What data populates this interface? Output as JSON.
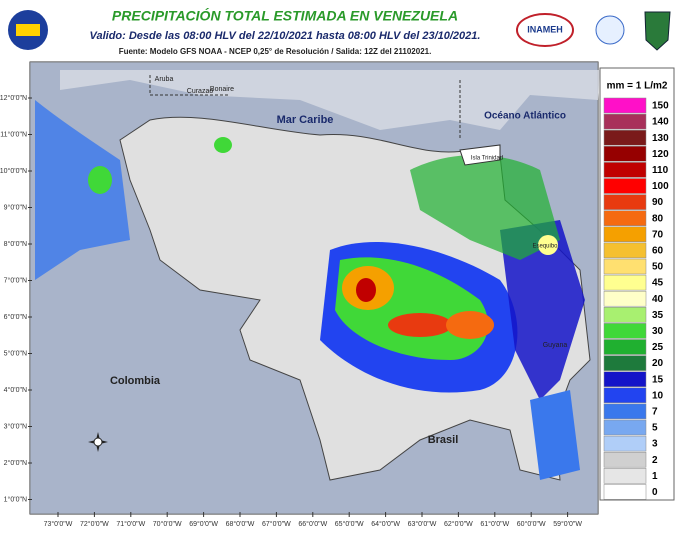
{
  "header": {
    "title": "PRECIPITACIÓN TOTAL ESTIMADA EN VENEZUELA",
    "subtitle": "Valido: Desde las 08:00 HLV del 22/10/2021 hasta 08:00 HLV del 23/10/2021.",
    "source": "Fuente: Modelo GFS NOAA - NCEP 0,25° de Resolución / Salida: 12Z del 21102021.",
    "logo": "INAMEH"
  },
  "legend": {
    "title": "mm = 1 L/m2",
    "items": [
      {
        "value": 150,
        "color": "#ff10c8"
      },
      {
        "value": 140,
        "color": "#a8305a"
      },
      {
        "value": 130,
        "color": "#7a1a1a"
      },
      {
        "value": 120,
        "color": "#960000"
      },
      {
        "value": 110,
        "color": "#c00000"
      },
      {
        "value": 100,
        "color": "#ff0000"
      },
      {
        "value": 90,
        "color": "#e83a10"
      },
      {
        "value": 80,
        "color": "#f56a10"
      },
      {
        "value": 70,
        "color": "#f5a000"
      },
      {
        "value": 60,
        "color": "#f5c030"
      },
      {
        "value": 50,
        "color": "#ffe070"
      },
      {
        "value": 45,
        "color": "#ffff90"
      },
      {
        "value": 40,
        "color": "#ffffc8"
      },
      {
        "value": 35,
        "color": "#a8f070"
      },
      {
        "value": 30,
        "color": "#40d838"
      },
      {
        "value": 25,
        "color": "#20b030"
      },
      {
        "value": 20,
        "color": "#1e7a3c"
      },
      {
        "value": 15,
        "color": "#1414c8"
      },
      {
        "value": 10,
        "color": "#2244f0"
      },
      {
        "value": 7,
        "color": "#3a78ec"
      },
      {
        "value": 5,
        "color": "#78a8f0"
      },
      {
        "value": 3,
        "color": "#b0cef8"
      },
      {
        "value": 2,
        "color": "#d0d0d0"
      },
      {
        "value": 1,
        "color": "#e6e6e6"
      },
      {
        "value": 0,
        "color": "#ffffff"
      }
    ]
  },
  "map": {
    "lat_labels": [
      "12°0'0\"N",
      "11°0'0\"N",
      "10°0'0\"N",
      "9°0'0\"N",
      "8°0'0\"N",
      "7°0'0\"N",
      "6°0'0\"N",
      "5°0'0\"N",
      "4°0'0\"N",
      "3°0'0\"N",
      "2°0'0\"N",
      "1°0'0\"N"
    ],
    "lon_labels": [
      "73°0'0\"W",
      "72°0'0\"W",
      "71°0'0\"W",
      "70°0'0\"W",
      "69°0'0\"W",
      "68°0'0\"W",
      "67°0'0\"W",
      "66°0'0\"W",
      "65°0'0\"W",
      "64°0'0\"W",
      "63°0'0\"W",
      "62°0'0\"W",
      "61°0'0\"W",
      "60°0'0\"W",
      "59°0'0\"W"
    ],
    "places": [
      "Aruba",
      "Curazao",
      "Bonaire",
      "Mar Caribe",
      "Océano Atlántico",
      "Isla Trinidad",
      "Esequibo",
      "Guyana",
      "Colombia",
      "Brasil"
    ]
  }
}
